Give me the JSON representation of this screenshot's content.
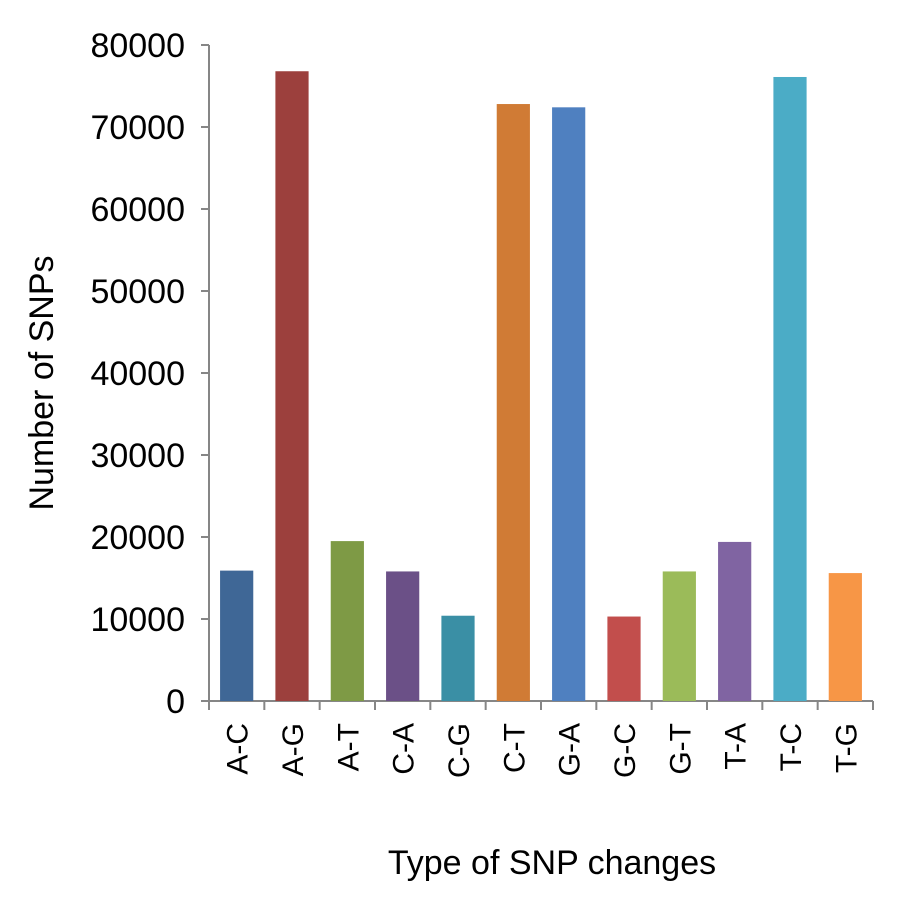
{
  "chart_data": {
    "type": "bar",
    "categories": [
      "A-C",
      "A-G",
      "A-T",
      "C-A",
      "C-G",
      "C-T",
      "G-A",
      "G-C",
      "G-T",
      "T-A",
      "T-C",
      "T-G"
    ],
    "values": [
      15900,
      76800,
      19500,
      15800,
      10400,
      72800,
      72400,
      10300,
      15800,
      19400,
      76100,
      15600
    ],
    "colors": [
      "#3F6796",
      "#9C403D",
      "#7E9A45",
      "#6B5087",
      "#3A8FA5",
      "#D07B35",
      "#4F80C0",
      "#C24E4C",
      "#9BBB59",
      "#8064A2",
      "#4BACC6",
      "#F79646"
    ],
    "xlabel": "Type of SNP changes",
    "ylabel": "Number of SNPs",
    "ylim": [
      0,
      80000
    ],
    "yticks": [
      "0",
      "10000",
      "20000",
      "30000",
      "40000",
      "50000",
      "60000",
      "70000",
      "80000"
    ],
    "grid": false,
    "legend": "none"
  }
}
